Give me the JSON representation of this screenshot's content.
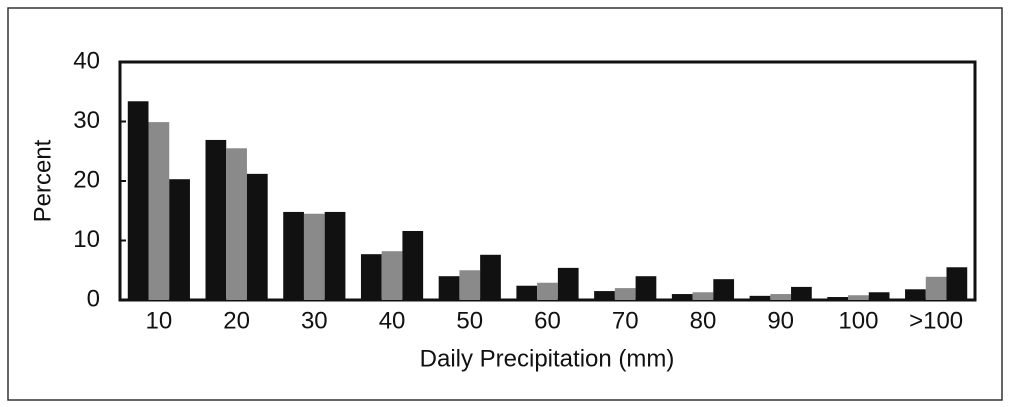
{
  "chart_data": {
    "type": "bar",
    "xlabel": "Daily Precipitation (mm)",
    "ylabel": "Percent",
    "categories": [
      "10",
      "20",
      "30",
      "40",
      "50",
      "60",
      "70",
      "80",
      "90",
      "100",
      ">100"
    ],
    "series": [
      {
        "color": "#111111",
        "values": [
          33.4,
          26.9,
          14.8,
          7.7,
          4.0,
          2.4,
          1.5,
          1.0,
          0.7,
          0.5,
          1.8
        ]
      },
      {
        "color": "#8a8a8a",
        "values": [
          29.9,
          25.5,
          14.5,
          8.2,
          5.0,
          2.9,
          2.0,
          1.3,
          1.0,
          0.8,
          3.9
        ]
      },
      {
        "color": "#111111",
        "values": [
          20.3,
          21.2,
          14.8,
          11.6,
          7.6,
          5.4,
          4.0,
          3.5,
          2.2,
          1.3,
          5.5
        ]
      }
    ],
    "ylim": [
      0,
      40
    ],
    "yticks": [
      0,
      10,
      20,
      30,
      40
    ]
  }
}
